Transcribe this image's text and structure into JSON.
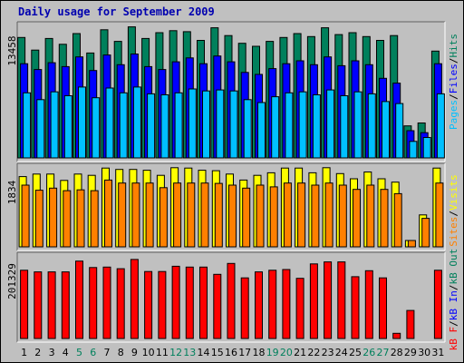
{
  "chart_data": {
    "type": "bar",
    "title": "Daily usage for September 2009",
    "categories": [
      "1",
      "2",
      "3",
      "4",
      "5",
      "6",
      "7",
      "8",
      "9",
      "10",
      "11",
      "12",
      "13",
      "14",
      "15",
      "16",
      "17",
      "18",
      "19",
      "20",
      "21",
      "22",
      "23",
      "24",
      "25",
      "26",
      "27",
      "28",
      "29",
      "30",
      "31"
    ],
    "weekend_days": [
      "5",
      "6",
      "12",
      "13",
      "19",
      "20",
      "26",
      "27"
    ],
    "weekday_label_color": "#000000",
    "weekend_label_color": "#00805c",
    "panels": [
      {
        "id": "hits-files-pages",
        "ymax": 13458,
        "ymax_label": "13458",
        "series": [
          {
            "name": "Hits",
            "color": "#00805c",
            "values": [
              12400,
              11100,
              12300,
              11700,
              12800,
              10800,
              13200,
              12000,
              13500,
              12300,
              12900,
              13100,
              13000,
              12100,
              13400,
              12600,
              11800,
              11500,
              12000,
              12400,
              12800,
              12500,
              13400,
              12700,
              12900,
              12500,
              12100,
              12600,
              3300,
              3600,
              11000
            ]
          },
          {
            "name": "Files",
            "color": "#0000ff",
            "values": [
              9700,
              9100,
              9800,
              9400,
              10400,
              9000,
              10600,
              9600,
              10700,
              9400,
              9100,
              9900,
              10300,
              9700,
              10500,
              9900,
              8800,
              8600,
              9200,
              9700,
              10000,
              9600,
              10400,
              9500,
              10000,
              9600,
              8200,
              7700,
              2800,
              2600,
              9700
            ]
          },
          {
            "name": "Pages",
            "color": "#00c0ff",
            "values": [
              6700,
              6000,
              6800,
              6400,
              7300,
              6200,
              7200,
              6700,
              7300,
              6600,
              6500,
              6700,
              7100,
              6900,
              7000,
              6900,
              6000,
              5700,
              6300,
              6700,
              6800,
              6500,
              7000,
              6400,
              6800,
              6600,
              5800,
              5600,
              1700,
              2100,
              6600
            ]
          }
        ]
      },
      {
        "id": "visits-sites",
        "ymax": 1834,
        "ymax_label": "1834",
        "series": [
          {
            "name": "Visits",
            "color": "#ffff00",
            "values": [
              1650,
              1710,
              1710,
              1560,
              1710,
              1680,
              1850,
              1820,
              1820,
              1800,
              1680,
              1860,
              1850,
              1800,
              1790,
              1710,
              1570,
              1680,
              1740,
              1850,
              1850,
              1740,
              1860,
              1720,
              1600,
              1760,
              1600,
              1520,
              150,
              750,
              1850
            ]
          },
          {
            "name": "Sites",
            "color": "#ff8000",
            "values": [
              1450,
              1330,
              1380,
              1320,
              1340,
              1320,
              1570,
              1500,
              1500,
              1500,
              1390,
              1500,
              1500,
              1500,
              1490,
              1450,
              1380,
              1450,
              1410,
              1500,
              1500,
              1450,
              1500,
              1450,
              1350,
              1450,
              1350,
              1250,
              150,
              670,
              1500
            ]
          }
        ]
      },
      {
        "id": "kbytes",
        "ymax": 201329,
        "ymax_label": "201329",
        "series": [
          {
            "name": "kB F",
            "color": "#ff0000",
            "values": [
              170000,
              166000,
              166000,
              166000,
              193000,
              177000,
              178000,
              174000,
              197000,
              167000,
              167000,
              180000,
              178000,
              178000,
              160000,
              187000,
              151000,
              166000,
              170000,
              172000,
              150000,
              186000,
              191000,
              191000,
              154000,
              169000,
              151000,
              13000,
              70000,
              0,
              170000
            ]
          }
        ]
      }
    ],
    "legend": {
      "hits_files_pages": [
        "Pages",
        "/",
        "Files",
        "/",
        "Hits"
      ],
      "visits_sites": [
        "Sites",
        "/",
        "Visits"
      ],
      "kbytes": [
        "kB F",
        "/",
        "kB In",
        "/",
        "kB Out"
      ],
      "colors": {
        "Pages": "#00c0ff",
        "Files": "#0000ff",
        "Hits": "#00805c",
        "Sites": "#ff8000",
        "Visits": "#ffff00",
        "kB F": "#ff0000",
        "kB In": "#0000ff",
        "kB Out": "#00805c",
        "/": "#000000"
      }
    }
  }
}
